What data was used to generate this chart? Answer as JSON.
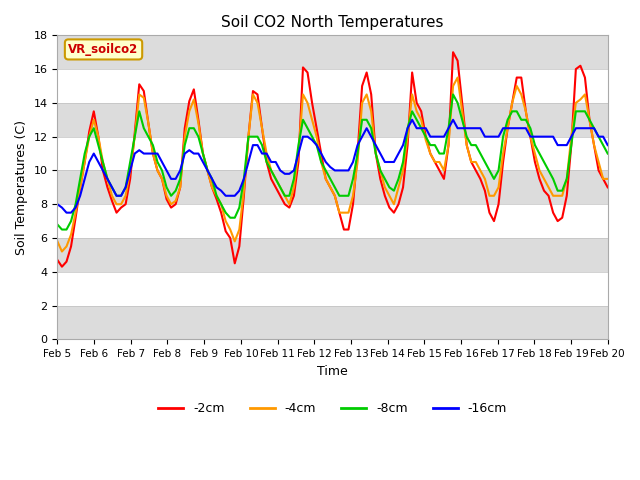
{
  "title": "Soil CO2 North Temperatures",
  "xlabel": "Time",
  "ylabel": "Soil Temperatures (C)",
  "ylim": [
    0,
    18
  ],
  "background_color": "#ffffff",
  "plot_bg_color": "#ffffff",
  "label_box_text": "VR_soilco2",
  "label_box_bg": "#ffffcc",
  "label_box_edge": "#cc9900",
  "label_box_text_color": "#cc0000",
  "x_tick_labels": [
    "Feb 5",
    "Feb 6",
    "Feb 7",
    "Feb 8",
    "Feb 9",
    "Feb 10",
    "Feb 11",
    "Feb 12",
    "Feb 13",
    "Feb 14",
    "Feb 15",
    "Feb 16",
    "Feb 17",
    "Feb 18",
    "Feb 19",
    "Feb 20"
  ],
  "colors": {
    "-2cm": "#ff0000",
    "-4cm": "#ff9900",
    "-8cm": "#00cc00",
    "-16cm": "#0000ff"
  },
  "legend_entries": [
    "-2cm",
    "-4cm",
    "-8cm",
    "-16cm"
  ],
  "band_color": "#dcdcdc",
  "band_ranges": [
    [
      0,
      2
    ],
    [
      4,
      6
    ],
    [
      8,
      10
    ],
    [
      12,
      14
    ],
    [
      16,
      18
    ]
  ],
  "series": {
    "-2cm": [
      4.7,
      4.3,
      4.6,
      5.5,
      7.2,
      9.0,
      10.5,
      12.3,
      13.5,
      12.0,
      10.0,
      9.0,
      8.2,
      7.5,
      7.8,
      8.0,
      9.5,
      12.2,
      15.1,
      14.7,
      12.8,
      11.0,
      10.0,
      9.5,
      8.3,
      7.8,
      8.0,
      9.0,
      12.5,
      14.1,
      14.8,
      13.0,
      11.0,
      10.0,
      9.0,
      8.3,
      7.5,
      6.4,
      6.0,
      4.5,
      5.5,
      8.5,
      12.0,
      14.7,
      14.5,
      12.5,
      10.5,
      9.5,
      9.0,
      8.5,
      8.0,
      7.8,
      8.5,
      10.5,
      16.1,
      15.8,
      14.0,
      12.5,
      11.0,
      9.5,
      9.0,
      8.5,
      7.5,
      6.5,
      6.5,
      8.0,
      11.0,
      15.0,
      15.8,
      14.5,
      11.0,
      9.5,
      8.5,
      7.8,
      7.5,
      8.0,
      9.0,
      11.5,
      15.8,
      14.0,
      13.5,
      12.0,
      11.0,
      10.5,
      10.0,
      9.5,
      11.5,
      17.0,
      16.5,
      14.0,
      11.5,
      10.5,
      10.0,
      9.5,
      8.8,
      7.5,
      7.0,
      8.0,
      10.5,
      12.5,
      14.0,
      15.5,
      15.5,
      13.5,
      12.0,
      10.5,
      9.5,
      8.8,
      8.5,
      7.5,
      7.0,
      7.2,
      8.5,
      11.5,
      16.0,
      16.2,
      15.5,
      13.0,
      11.5,
      10.0,
      9.5,
      9.0
    ],
    "-4cm": [
      5.8,
      5.2,
      5.5,
      6.2,
      7.5,
      9.0,
      10.5,
      12.0,
      13.0,
      12.0,
      10.5,
      9.5,
      8.5,
      8.0,
      8.0,
      8.5,
      10.0,
      12.0,
      14.5,
      14.3,
      12.8,
      11.0,
      10.0,
      9.5,
      8.5,
      8.0,
      8.2,
      9.0,
      12.0,
      13.5,
      14.2,
      12.8,
      11.0,
      10.0,
      9.0,
      8.5,
      8.0,
      7.0,
      6.5,
      5.8,
      6.5,
      8.8,
      12.0,
      14.5,
      14.0,
      12.5,
      11.0,
      10.0,
      9.5,
      9.0,
      8.5,
      8.0,
      9.0,
      11.0,
      14.5,
      14.0,
      13.0,
      12.0,
      10.5,
      9.5,
      9.0,
      8.5,
      7.5,
      7.5,
      7.5,
      8.5,
      10.5,
      14.0,
      14.5,
      13.5,
      11.0,
      10.0,
      9.0,
      8.5,
      8.0,
      9.0,
      10.0,
      12.0,
      14.5,
      13.5,
      13.0,
      11.8,
      11.0,
      10.5,
      10.5,
      10.0,
      11.5,
      15.0,
      15.5,
      13.5,
      11.5,
      10.5,
      10.5,
      10.0,
      9.5,
      8.5,
      8.5,
      9.0,
      11.0,
      12.5,
      14.0,
      15.0,
      14.5,
      13.5,
      12.0,
      11.0,
      10.0,
      9.5,
      9.0,
      8.5,
      8.5,
      8.5,
      9.5,
      12.0,
      14.0,
      14.2,
      14.5,
      13.0,
      11.5,
      10.5,
      9.5,
      9.5
    ],
    "-8cm": [
      6.8,
      6.5,
      6.5,
      7.0,
      8.0,
      9.5,
      11.0,
      12.0,
      12.5,
      11.5,
      10.5,
      9.5,
      9.0,
      8.5,
      8.5,
      9.0,
      10.5,
      12.0,
      13.5,
      12.5,
      12.0,
      11.5,
      10.5,
      10.0,
      9.0,
      8.5,
      8.8,
      9.5,
      11.5,
      12.5,
      12.5,
      12.0,
      11.0,
      10.0,
      9.5,
      8.5,
      8.0,
      7.5,
      7.2,
      7.2,
      7.8,
      9.5,
      12.0,
      12.0,
      12.0,
      11.5,
      10.5,
      10.0,
      9.5,
      9.0,
      8.5,
      8.5,
      9.5,
      11.5,
      13.0,
      12.5,
      12.0,
      11.5,
      10.5,
      10.0,
      9.5,
      9.0,
      8.5,
      8.5,
      8.5,
      9.5,
      11.0,
      13.0,
      13.0,
      12.5,
      11.0,
      10.0,
      9.5,
      9.0,
      8.8,
      9.5,
      10.5,
      12.5,
      13.5,
      13.0,
      12.5,
      12.0,
      11.5,
      11.5,
      11.0,
      11.0,
      12.5,
      14.5,
      14.0,
      13.0,
      12.0,
      11.5,
      11.5,
      11.0,
      10.5,
      10.0,
      9.5,
      10.0,
      12.0,
      13.0,
      13.5,
      13.5,
      13.0,
      13.0,
      12.5,
      11.5,
      11.0,
      10.5,
      10.0,
      9.5,
      8.8,
      8.8,
      9.5,
      11.5,
      13.5,
      13.5,
      13.5,
      13.0,
      12.5,
      12.0,
      11.5,
      11.0
    ],
    "-16cm": [
      8.0,
      7.8,
      7.5,
      7.5,
      7.8,
      8.5,
      9.5,
      10.5,
      11.0,
      10.5,
      10.0,
      9.5,
      9.0,
      8.5,
      8.5,
      9.0,
      10.0,
      11.0,
      11.2,
      11.0,
      11.0,
      11.0,
      11.0,
      10.5,
      10.0,
      9.5,
      9.5,
      10.0,
      11.0,
      11.2,
      11.0,
      11.0,
      10.5,
      10.0,
      9.5,
      9.0,
      8.8,
      8.5,
      8.5,
      8.5,
      8.8,
      9.5,
      10.5,
      11.5,
      11.5,
      11.0,
      11.0,
      10.5,
      10.5,
      10.0,
      9.8,
      9.8,
      10.0,
      11.0,
      12.0,
      12.0,
      11.8,
      11.5,
      11.0,
      10.5,
      10.2,
      10.0,
      10.0,
      10.0,
      10.0,
      10.5,
      11.5,
      12.0,
      12.5,
      12.0,
      11.5,
      11.0,
      10.5,
      10.5,
      10.5,
      11.0,
      11.5,
      12.5,
      13.0,
      12.5,
      12.5,
      12.5,
      12.0,
      12.0,
      12.0,
      12.0,
      12.5,
      13.0,
      12.5,
      12.5,
      12.5,
      12.5,
      12.5,
      12.5,
      12.0,
      12.0,
      12.0,
      12.0,
      12.5,
      12.5,
      12.5,
      12.5,
      12.5,
      12.5,
      12.0,
      12.0,
      12.0,
      12.0,
      12.0,
      12.0,
      11.5,
      11.5,
      11.5,
      12.0,
      12.5,
      12.5,
      12.5,
      12.5,
      12.5,
      12.0,
      12.0,
      11.5
    ]
  }
}
